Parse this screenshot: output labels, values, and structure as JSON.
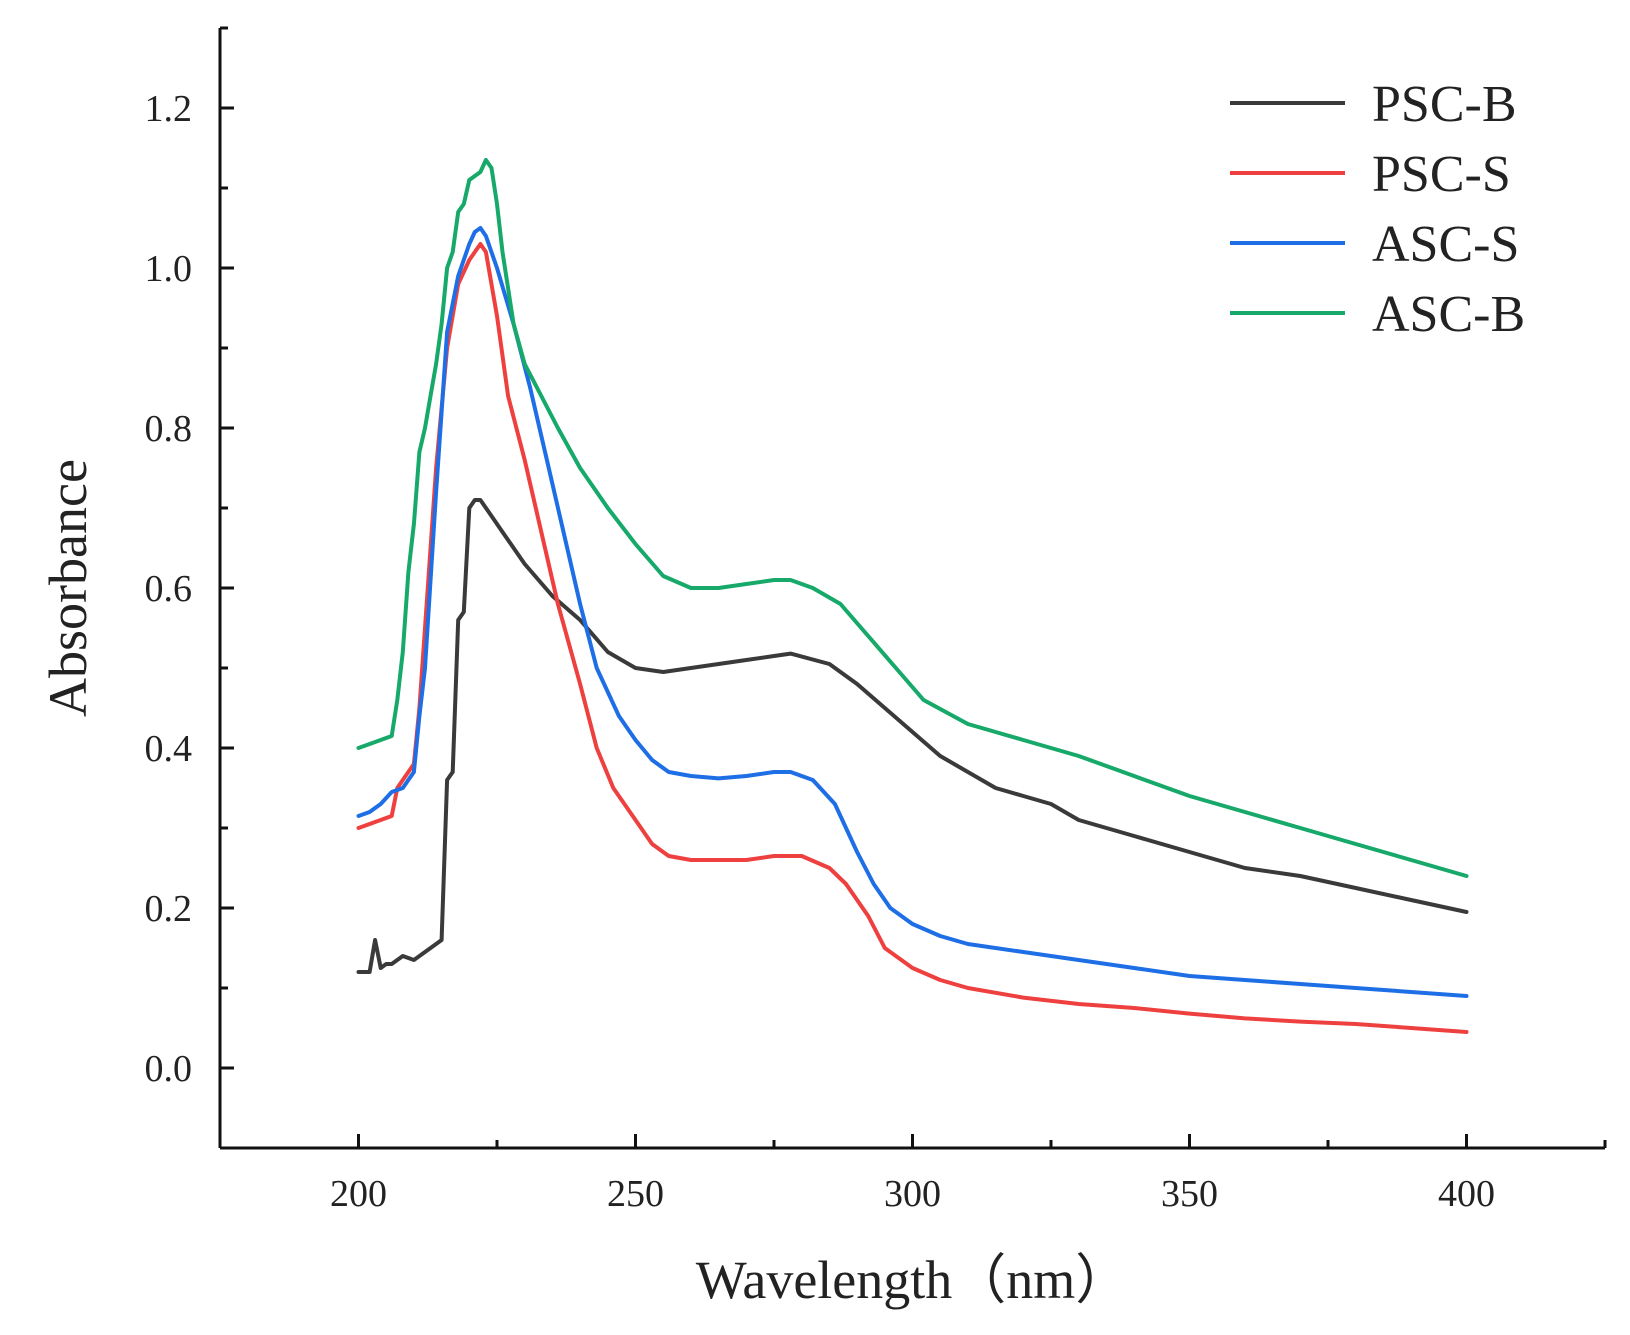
{
  "chart_data": {
    "type": "line",
    "title": "",
    "xlabel": "Wavelength（nm）",
    "ylabel": "Absorbance",
    "xlim": [
      175,
      425
    ],
    "ylim": [
      -0.1,
      1.3
    ],
    "x_ticks": [
      200,
      250,
      300,
      350,
      400
    ],
    "y_ticks": [
      0.0,
      0.2,
      0.4,
      0.6,
      0.8,
      1.0,
      1.2
    ],
    "x_tick_labels": [
      "200",
      "250",
      "300",
      "350",
      "400"
    ],
    "y_tick_labels": [
      "0.0",
      "0.2",
      "0.4",
      "0.6",
      "0.8",
      "1.0",
      "1.2"
    ],
    "grid": false,
    "legend_position": "top-right",
    "series": [
      {
        "name": "PSC-B",
        "color": "#3a3a3a",
        "points": [
          [
            200,
            0.12
          ],
          [
            201,
            0.12
          ],
          [
            202,
            0.12
          ],
          [
            203,
            0.16
          ],
          [
            204,
            0.125
          ],
          [
            205,
            0.13
          ],
          [
            206,
            0.13
          ],
          [
            208,
            0.14
          ],
          [
            210,
            0.135
          ],
          [
            212,
            0.145
          ],
          [
            214,
            0.155
          ],
          [
            215,
            0.16
          ],
          [
            216,
            0.36
          ],
          [
            217,
            0.37
          ],
          [
            218,
            0.56
          ],
          [
            219,
            0.57
          ],
          [
            220,
            0.7
          ],
          [
            221,
            0.71
          ],
          [
            222,
            0.71
          ],
          [
            224,
            0.69
          ],
          [
            226,
            0.67
          ],
          [
            228,
            0.65
          ],
          [
            230,
            0.63
          ],
          [
            235,
            0.59
          ],
          [
            240,
            0.56
          ],
          [
            245,
            0.52
          ],
          [
            250,
            0.5
          ],
          [
            255,
            0.495
          ],
          [
            260,
            0.5
          ],
          [
            265,
            0.505
          ],
          [
            270,
            0.51
          ],
          [
            275,
            0.515
          ],
          [
            278,
            0.518
          ],
          [
            285,
            0.505
          ],
          [
            290,
            0.48
          ],
          [
            295,
            0.45
          ],
          [
            300,
            0.42
          ],
          [
            305,
            0.39
          ],
          [
            310,
            0.37
          ],
          [
            315,
            0.35
          ],
          [
            320,
            0.34
          ],
          [
            325,
            0.33
          ],
          [
            330,
            0.31
          ],
          [
            340,
            0.29
          ],
          [
            350,
            0.27
          ],
          [
            360,
            0.25
          ],
          [
            370,
            0.24
          ],
          [
            380,
            0.225
          ],
          [
            390,
            0.21
          ],
          [
            400,
            0.195
          ]
        ]
      },
      {
        "name": "PSC-S",
        "color": "#ef4040",
        "points": [
          [
            200,
            0.3
          ],
          [
            202,
            0.305
          ],
          [
            204,
            0.31
          ],
          [
            206,
            0.315
          ],
          [
            207,
            0.35
          ],
          [
            208,
            0.36
          ],
          [
            210,
            0.38
          ],
          [
            211,
            0.45
          ],
          [
            212,
            0.55
          ],
          [
            214,
            0.75
          ],
          [
            216,
            0.9
          ],
          [
            218,
            0.98
          ],
          [
            220,
            1.01
          ],
          [
            222,
            1.03
          ],
          [
            223,
            1.02
          ],
          [
            225,
            0.94
          ],
          [
            227,
            0.84
          ],
          [
            230,
            0.76
          ],
          [
            233,
            0.67
          ],
          [
            236,
            0.58
          ],
          [
            240,
            0.48
          ],
          [
            243,
            0.4
          ],
          [
            246,
            0.35
          ],
          [
            250,
            0.31
          ],
          [
            253,
            0.28
          ],
          [
            256,
            0.265
          ],
          [
            260,
            0.26
          ],
          [
            265,
            0.26
          ],
          [
            270,
            0.26
          ],
          [
            275,
            0.265
          ],
          [
            280,
            0.265
          ],
          [
            285,
            0.25
          ],
          [
            288,
            0.23
          ],
          [
            292,
            0.19
          ],
          [
            295,
            0.15
          ],
          [
            300,
            0.125
          ],
          [
            305,
            0.11
          ],
          [
            310,
            0.1
          ],
          [
            320,
            0.088
          ],
          [
            330,
            0.08
          ],
          [
            340,
            0.075
          ],
          [
            350,
            0.068
          ],
          [
            360,
            0.062
          ],
          [
            370,
            0.058
          ],
          [
            380,
            0.055
          ],
          [
            390,
            0.05
          ],
          [
            400,
            0.045
          ]
        ]
      },
      {
        "name": "ASC-S",
        "color": "#1e6ee6",
        "points": [
          [
            200,
            0.315
          ],
          [
            202,
            0.32
          ],
          [
            204,
            0.33
          ],
          [
            206,
            0.345
          ],
          [
            208,
            0.35
          ],
          [
            210,
            0.37
          ],
          [
            211,
            0.44
          ],
          [
            212,
            0.5
          ],
          [
            214,
            0.72
          ],
          [
            216,
            0.92
          ],
          [
            218,
            0.99
          ],
          [
            220,
            1.03
          ],
          [
            221,
            1.045
          ],
          [
            222,
            1.05
          ],
          [
            223,
            1.04
          ],
          [
            225,
            1.0
          ],
          [
            228,
            0.93
          ],
          [
            231,
            0.85
          ],
          [
            234,
            0.76
          ],
          [
            237,
            0.67
          ],
          [
            240,
            0.58
          ],
          [
            243,
            0.5
          ],
          [
            247,
            0.44
          ],
          [
            250,
            0.41
          ],
          [
            253,
            0.385
          ],
          [
            256,
            0.37
          ],
          [
            260,
            0.365
          ],
          [
            265,
            0.362
          ],
          [
            270,
            0.365
          ],
          [
            275,
            0.37
          ],
          [
            278,
            0.37
          ],
          [
            282,
            0.36
          ],
          [
            286,
            0.33
          ],
          [
            290,
            0.27
          ],
          [
            293,
            0.23
          ],
          [
            296,
            0.2
          ],
          [
            300,
            0.18
          ],
          [
            305,
            0.165
          ],
          [
            310,
            0.155
          ],
          [
            320,
            0.145
          ],
          [
            330,
            0.135
          ],
          [
            340,
            0.125
          ],
          [
            350,
            0.115
          ],
          [
            360,
            0.11
          ],
          [
            370,
            0.105
          ],
          [
            380,
            0.1
          ],
          [
            390,
            0.095
          ],
          [
            400,
            0.09
          ]
        ]
      },
      {
        "name": "ASC-B",
        "color": "#16a96a",
        "points": [
          [
            200,
            0.4
          ],
          [
            202,
            0.405
          ],
          [
            204,
            0.41
          ],
          [
            206,
            0.415
          ],
          [
            207,
            0.46
          ],
          [
            208,
            0.52
          ],
          [
            209,
            0.62
          ],
          [
            210,
            0.68
          ],
          [
            211,
            0.77
          ],
          [
            212,
            0.8
          ],
          [
            213,
            0.84
          ],
          [
            214,
            0.88
          ],
          [
            215,
            0.93
          ],
          [
            216,
            1.0
          ],
          [
            217,
            1.02
          ],
          [
            218,
            1.07
          ],
          [
            219,
            1.08
          ],
          [
            220,
            1.11
          ],
          [
            221,
            1.115
          ],
          [
            222,
            1.12
          ],
          [
            223,
            1.135
          ],
          [
            224,
            1.125
          ],
          [
            225,
            1.08
          ],
          [
            226,
            1.02
          ],
          [
            228,
            0.93
          ],
          [
            230,
            0.88
          ],
          [
            233,
            0.84
          ],
          [
            236,
            0.8
          ],
          [
            240,
            0.75
          ],
          [
            245,
            0.7
          ],
          [
            250,
            0.655
          ],
          [
            255,
            0.615
          ],
          [
            260,
            0.6
          ],
          [
            265,
            0.6
          ],
          [
            270,
            0.605
          ],
          [
            275,
            0.61
          ],
          [
            278,
            0.61
          ],
          [
            282,
            0.6
          ],
          [
            287,
            0.58
          ],
          [
            292,
            0.54
          ],
          [
            297,
            0.5
          ],
          [
            302,
            0.46
          ],
          [
            310,
            0.43
          ],
          [
            320,
            0.41
          ],
          [
            330,
            0.39
          ],
          [
            340,
            0.365
          ],
          [
            350,
            0.34
          ],
          [
            360,
            0.32
          ],
          [
            370,
            0.3
          ],
          [
            380,
            0.28
          ],
          [
            390,
            0.26
          ],
          [
            400,
            0.24
          ]
        ]
      }
    ]
  }
}
